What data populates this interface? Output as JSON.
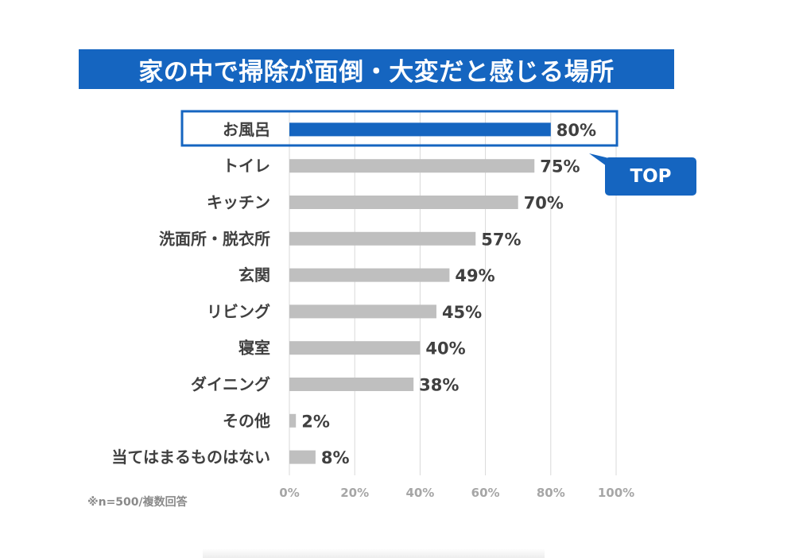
{
  "title": "家の中で掃除が面倒・大変だと感じる場所",
  "footnote": "※n=500/複数回答",
  "badge": "TOP",
  "colors": {
    "accent": "#1565c0",
    "bar": "#bfbfbf",
    "label": "#404040",
    "tick": "#a6a6a6",
    "grid": "#d9d9d9"
  },
  "chart_data": {
    "type": "bar",
    "orientation": "horizontal",
    "title": "家の中で掃除が面倒・大変だと感じる場所",
    "categories": [
      "お風呂",
      "トイレ",
      "キッチン",
      "洗面所・脱衣所",
      "玄関",
      "リビング",
      "寝室",
      "ダイニング",
      "その他",
      "当てはまるものはない"
    ],
    "values": [
      80,
      75,
      70,
      57,
      49,
      45,
      40,
      38,
      2,
      8
    ],
    "value_labels": [
      "80%",
      "75%",
      "70%",
      "57%",
      "49%",
      "45%",
      "40%",
      "38%",
      "2%",
      "8%"
    ],
    "xlim": [
      0,
      100
    ],
    "ticks": [
      "0%",
      "20%",
      "40%",
      "60%",
      "80%",
      "100%"
    ],
    "highlight_index": 0,
    "grid": true
  }
}
